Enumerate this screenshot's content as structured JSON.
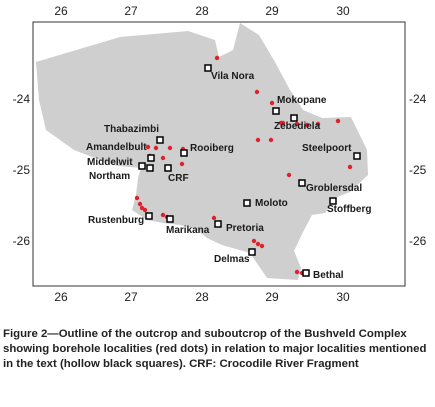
{
  "map": {
    "x_ticks": [
      "26",
      "27",
      "28",
      "29",
      "30"
    ],
    "y_ticks": [
      "-24",
      "-25",
      "-26"
    ],
    "colors": {
      "outcrop": "#cfcfcf",
      "borehole": "#e0202a",
      "locality": "#000000",
      "frame": "#333333"
    },
    "localities": [
      {
        "name": "Vila Nora"
      },
      {
        "name": "Mokopane"
      },
      {
        "name": "Zebediela"
      },
      {
        "name": "Thabazimbi"
      },
      {
        "name": "Amandelbult"
      },
      {
        "name": "Rooiberg"
      },
      {
        "name": "Middelwit"
      },
      {
        "name": "Northam"
      },
      {
        "name": "CRF"
      },
      {
        "name": "Steelpoort"
      },
      {
        "name": "Groblersdal"
      },
      {
        "name": "Moloto"
      },
      {
        "name": "Stoffberg"
      },
      {
        "name": "Rustenburg"
      },
      {
        "name": "Marikana"
      },
      {
        "name": "Pretoria"
      },
      {
        "name": "Delmas"
      },
      {
        "name": "Bethal"
      }
    ]
  },
  "caption": "Figure 2—Outline of the outcrop and suboutcrop of the Bushveld Complex showing borehole localities (red dots) in relation to major localities mentioned in the text (hollow black squares). CRF: Crocodile River Fragment"
}
